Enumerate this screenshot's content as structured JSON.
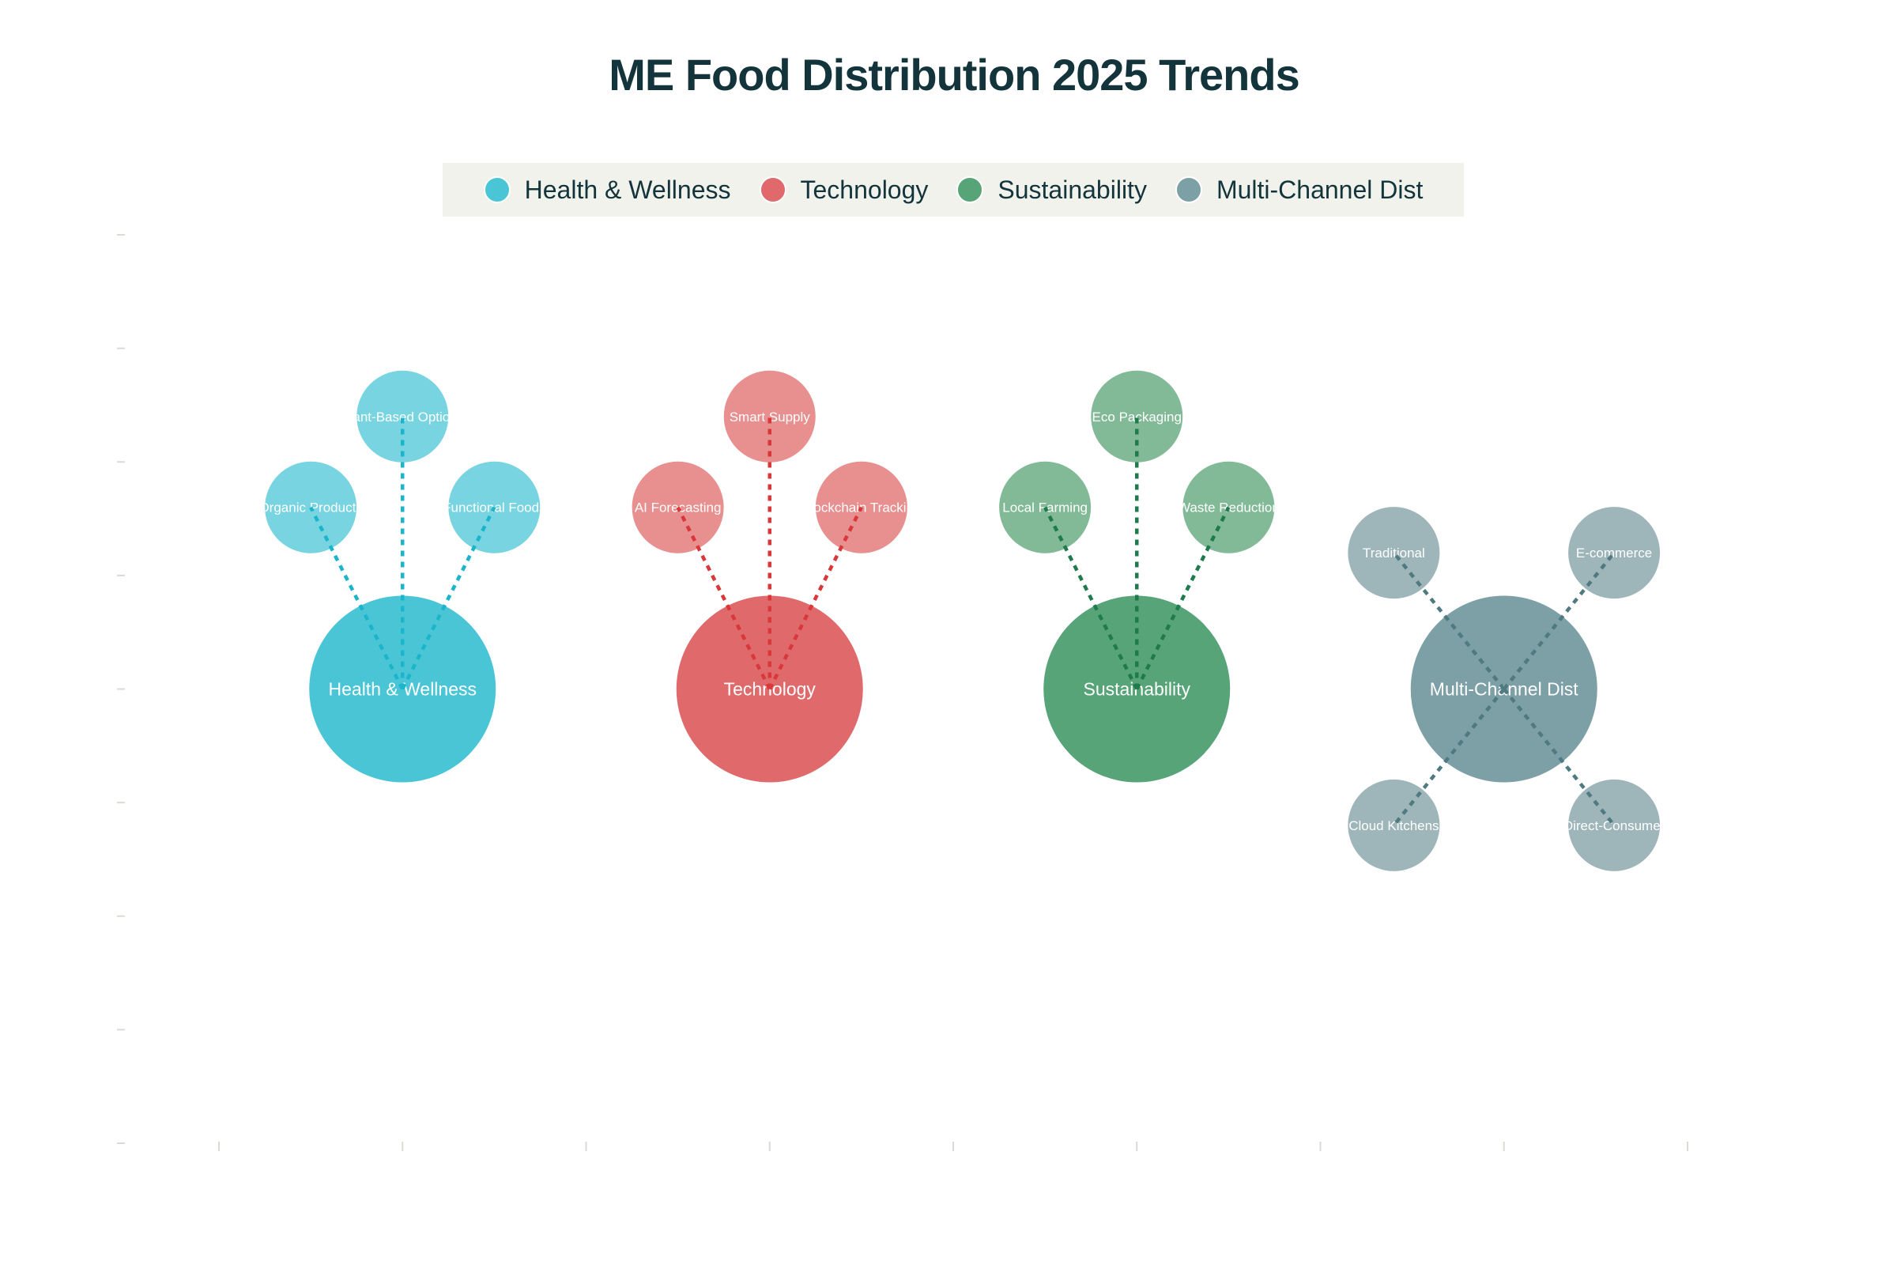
{
  "chart_data": {
    "type": "scatter",
    "title": "ME Food Distribution 2025 Trends",
    "xlabel": "",
    "ylabel": "",
    "xlim": [
      0.5,
      4.5
    ],
    "ylim": [
      -4,
      4
    ],
    "x_ticks": [
      0.5,
      1,
      1.5,
      2,
      2.5,
      3,
      3.5,
      4,
      4.5
    ],
    "y_ticks": [
      -4,
      -3,
      -2,
      -1,
      0,
      1,
      2,
      3,
      4
    ],
    "tick_labels_shown": false,
    "grid": false,
    "legend_placement": "top-center",
    "series": [
      {
        "name": "Health & Wellness",
        "color": "#4AC5D6",
        "sub_color": "#78D4E0",
        "line_color": "#1BB5CB",
        "center": {
          "label": "Health & Wellness",
          "x": 1,
          "y": 0
        },
        "subtopics": [
          {
            "label": "Organic Products",
            "x": 0.75,
            "y": 1.6
          },
          {
            "label": "Plant-Based Options",
            "x": 1,
            "y": 2.4
          },
          {
            "label": "Functional Foods",
            "x": 1.25,
            "y": 1.6
          }
        ]
      },
      {
        "name": "Technology",
        "color": "#E06A6B",
        "sub_color": "#E88F8F",
        "line_color": "#D8383A",
        "center": {
          "label": "Technology",
          "x": 2,
          "y": 0
        },
        "subtopics": [
          {
            "label": "AI Forecasting",
            "x": 1.75,
            "y": 1.6
          },
          {
            "label": "Smart Supply",
            "x": 2,
            "y": 2.4
          },
          {
            "label": "Blockchain Tracking",
            "x": 2.25,
            "y": 1.6
          }
        ]
      },
      {
        "name": "Sustainability",
        "color": "#56A478",
        "sub_color": "#82B996",
        "line_color": "#1F7A4D",
        "center": {
          "label": "Sustainability",
          "x": 3,
          "y": 0
        },
        "subtopics": [
          {
            "label": "Local Farming",
            "x": 2.75,
            "y": 1.6
          },
          {
            "label": "Eco Packaging",
            "x": 3,
            "y": 2.4
          },
          {
            "label": "Waste Reduction",
            "x": 3.25,
            "y": 1.6
          }
        ]
      },
      {
        "name": "Multi-Channel Dist",
        "color": "#7D9FA6",
        "sub_color": "#9EB5BA",
        "line_color": "#4F7A80",
        "center": {
          "label": "Multi-Channel Dist",
          "x": 4,
          "y": 0
        },
        "subtopics": [
          {
            "label": "Traditional",
            "x": 3.7,
            "y": 1.2
          },
          {
            "label": "E-commerce",
            "x": 4.3,
            "y": 1.2
          },
          {
            "label": "Cloud Kitchens",
            "x": 3.7,
            "y": -1.2
          },
          {
            "label": "Direct-Consumer",
            "x": 4.3,
            "y": -1.2
          }
        ]
      }
    ]
  }
}
